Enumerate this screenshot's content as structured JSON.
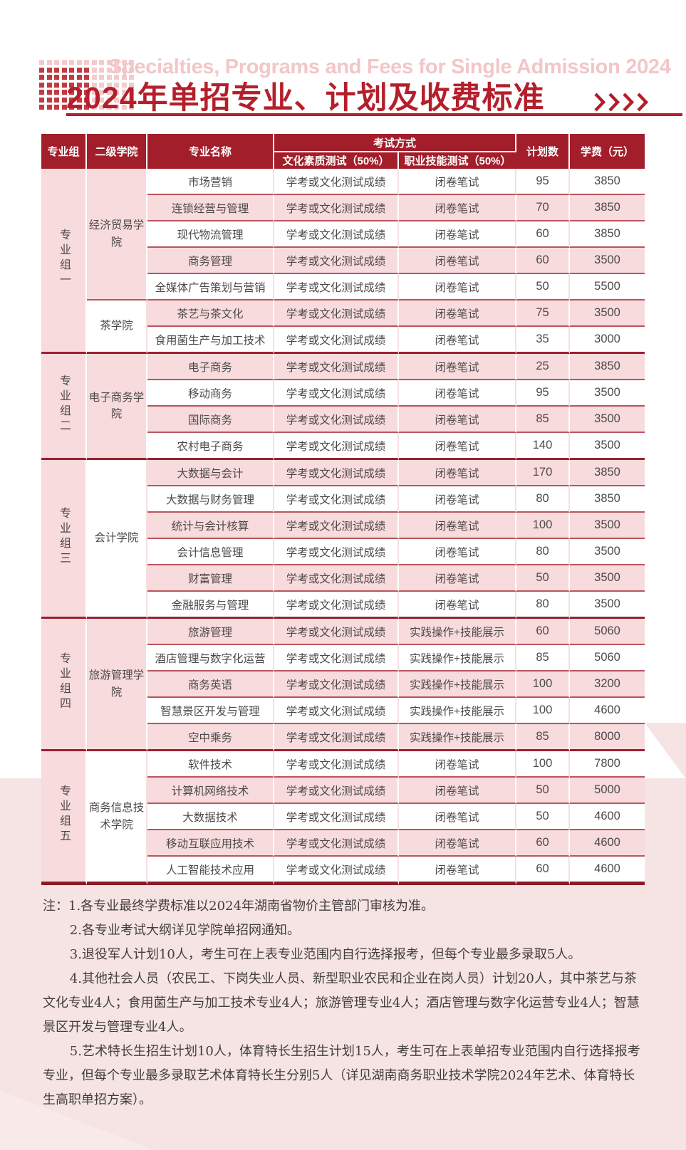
{
  "page": {
    "eyebrow": "Specialties, Programs and Fees for Single Admission 2024",
    "title": "2024年单招专业、计划及收费标准"
  },
  "colors": {
    "accent": "#B41F2B",
    "header_bg": "#A31E2B",
    "row_pink": "#F8DBDC",
    "background_band": "#F6E4E4"
  },
  "table": {
    "header": {
      "group": "专业组",
      "college": "二级学院",
      "major": "专业名称",
      "exam": "考试方式",
      "culture": "文化素质测试（50%）",
      "skill": "职业技能测试（50%）",
      "plan": "计划数",
      "fee": "学费（元）"
    },
    "groups": [
      {
        "label": "专业组一",
        "colleges": [
          {
            "name": "经济贸易学院",
            "rows": [
              {
                "major": "市场营销",
                "culture": "学考或文化测试成绩",
                "skill": "闭卷笔试",
                "plan": "95",
                "fee": "3850"
              },
              {
                "major": "连锁经营与管理",
                "culture": "学考或文化测试成绩",
                "skill": "闭卷笔试",
                "plan": "70",
                "fee": "3850"
              },
              {
                "major": "现代物流管理",
                "culture": "学考或文化测试成绩",
                "skill": "闭卷笔试",
                "plan": "60",
                "fee": "3850"
              },
              {
                "major": "商务管理",
                "culture": "学考或文化测试成绩",
                "skill": "闭卷笔试",
                "plan": "60",
                "fee": "3500"
              },
              {
                "major": "全媒体广告策划与营销",
                "culture": "学考或文化测试成绩",
                "skill": "闭卷笔试",
                "plan": "50",
                "fee": "5500"
              }
            ]
          },
          {
            "name": "茶学院",
            "rows": [
              {
                "major": "茶艺与茶文化",
                "culture": "学考或文化测试成绩",
                "skill": "闭卷笔试",
                "plan": "75",
                "fee": "3500"
              },
              {
                "major": "食用菌生产与加工技术",
                "culture": "学考或文化测试成绩",
                "skill": "闭卷笔试",
                "plan": "35",
                "fee": "3000"
              }
            ]
          }
        ]
      },
      {
        "label": "专业组二",
        "colleges": [
          {
            "name": "电子商务学院",
            "rows": [
              {
                "major": "电子商务",
                "culture": "学考或文化测试成绩",
                "skill": "闭卷笔试",
                "plan": "25",
                "fee": "3850"
              },
              {
                "major": "移动商务",
                "culture": "学考或文化测试成绩",
                "skill": "闭卷笔试",
                "plan": "95",
                "fee": "3500"
              },
              {
                "major": "国际商务",
                "culture": "学考或文化测试成绩",
                "skill": "闭卷笔试",
                "plan": "85",
                "fee": "3500"
              },
              {
                "major": "农村电子商务",
                "culture": "学考或文化测试成绩",
                "skill": "闭卷笔试",
                "plan": "140",
                "fee": "3500"
              }
            ]
          }
        ]
      },
      {
        "label": "专业组三",
        "colleges": [
          {
            "name": "会计学院",
            "rows": [
              {
                "major": "大数据与会计",
                "culture": "学考或文化测试成绩",
                "skill": "闭卷笔试",
                "plan": "170",
                "fee": "3850"
              },
              {
                "major": "大数据与财务管理",
                "culture": "学考或文化测试成绩",
                "skill": "闭卷笔试",
                "plan": "80",
                "fee": "3850"
              },
              {
                "major": "统计与会计核算",
                "culture": "学考或文化测试成绩",
                "skill": "闭卷笔试",
                "plan": "100",
                "fee": "3500"
              },
              {
                "major": "会计信息管理",
                "culture": "学考或文化测试成绩",
                "skill": "闭卷笔试",
                "plan": "80",
                "fee": "3500"
              },
              {
                "major": "财富管理",
                "culture": "学考或文化测试成绩",
                "skill": "闭卷笔试",
                "plan": "50",
                "fee": "3500"
              },
              {
                "major": "金融服务与管理",
                "culture": "学考或文化测试成绩",
                "skill": "闭卷笔试",
                "plan": "80",
                "fee": "3500"
              }
            ]
          }
        ]
      },
      {
        "label": "专业组四",
        "colleges": [
          {
            "name": "旅游管理学院",
            "rows": [
              {
                "major": "旅游管理",
                "culture": "学考或文化测试成绩",
                "skill": "实践操作+技能展示",
                "plan": "60",
                "fee": "5060"
              },
              {
                "major": "酒店管理与数字化运营",
                "culture": "学考或文化测试成绩",
                "skill": "实践操作+技能展示",
                "plan": "85",
                "fee": "5060"
              },
              {
                "major": "商务英语",
                "culture": "学考或文化测试成绩",
                "skill": "实践操作+技能展示",
                "plan": "100",
                "fee": "3200"
              },
              {
                "major": "智慧景区开发与管理",
                "culture": "学考或文化测试成绩",
                "skill": "实践操作+技能展示",
                "plan": "100",
                "fee": "4600"
              },
              {
                "major": "空中乘务",
                "culture": "学考或文化测试成绩",
                "skill": "实践操作+技能展示",
                "plan": "85",
                "fee": "8000"
              }
            ]
          }
        ]
      },
      {
        "label": "专业组五",
        "colleges": [
          {
            "name": "商务信息技术学院",
            "rows": [
              {
                "major": "软件技术",
                "culture": "学考或文化测试成绩",
                "skill": "闭卷笔试",
                "plan": "100",
                "fee": "7800"
              },
              {
                "major": "计算机网络技术",
                "culture": "学考或文化测试成绩",
                "skill": "闭卷笔试",
                "plan": "50",
                "fee": "5000"
              },
              {
                "major": "大数据技术",
                "culture": "学考或文化测试成绩",
                "skill": "闭卷笔试",
                "plan": "50",
                "fee": "4600"
              },
              {
                "major": "移动互联应用技术",
                "culture": "学考或文化测试成绩",
                "skill": "闭卷笔试",
                "plan": "60",
                "fee": "4600"
              },
              {
                "major": "人工智能技术应用",
                "culture": "学考或文化测试成绩",
                "skill": "闭卷笔试",
                "plan": "60",
                "fee": "4600"
              }
            ]
          }
        ]
      }
    ]
  },
  "notes": [
    "注：1.各专业最终学费标准以2024年湖南省物价主管部门审核为准。",
    "2.各专业考试大纲详见学院单招网通知。",
    "3.退役军人计划10人，考生可在上表专业范围内自行选择报考，但每个专业最多录取5人。",
    "4.其他社会人员（农民工、下岗失业人员、新型职业农民和企业在岗人员）计划20人，其中茶艺与茶文化专业4人；食用菌生产与加工技术专业4人；旅游管理专业4人；酒店管理与数字化运营专业4人；智慧景区开发与管理专业4人。",
    "5.艺术特长生招生计划10人，体育特长生招生计划15人，考生可在上表单招专业范围内自行选择报考专业，但每个专业最多录取艺术体育特长生分别5人（详见湖南商务职业技术学院2024年艺术、体育特长生高职单招方案）。"
  ]
}
